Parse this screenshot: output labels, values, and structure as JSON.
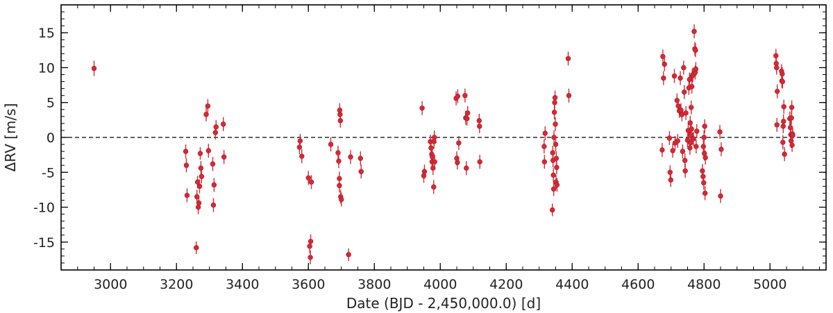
{
  "chart_data": {
    "type": "scatter",
    "xlabel": "Date (BJD - 2,450,000.0) [d]",
    "ylabel": "ΔRV [m/s]",
    "xlim": [
      2850,
      5170
    ],
    "ylim": [
      -19,
      19
    ],
    "x_ticks": [
      3000,
      3200,
      3400,
      3600,
      3800,
      4000,
      4200,
      4400,
      4600,
      4800,
      5000
    ],
    "y_ticks": [
      -15,
      -10,
      -5,
      0,
      5,
      10,
      15
    ],
    "x_tick_labels": [
      "3000",
      "3200",
      "3400",
      "3600",
      "3800",
      "4000",
      "4200",
      "4400",
      "4600",
      "4800",
      "5000"
    ],
    "y_tick_labels": [
      "-15",
      "-10",
      "-5",
      "0",
      "5",
      "10",
      "15"
    ],
    "x_minor_step": 50,
    "y_minor_step": 1,
    "reference_line": {
      "y": 0,
      "style": "dashed"
    },
    "grid": false,
    "marker_color": "#d42a35",
    "error_bar_color": "#d42a35",
    "series": [
      {
        "points": [
          {
            "x": 2950,
            "y": 9.9,
            "err": 1.1
          },
          {
            "x": 3228,
            "y": -2.0,
            "err": 1.0
          },
          {
            "x": 3230,
            "y": -4.0,
            "err": 1.0
          },
          {
            "x": 3232,
            "y": -8.3,
            "err": 1.0
          },
          {
            "x": 3260,
            "y": -15.8,
            "err": 0.9
          },
          {
            "x": 3262,
            "y": -8.5,
            "err": 1.0
          },
          {
            "x": 3264,
            "y": -6.4,
            "err": 0.9
          },
          {
            "x": 3266,
            "y": -10.0,
            "err": 1.0
          },
          {
            "x": 3268,
            "y": -9.4,
            "err": 1.0
          },
          {
            "x": 3270,
            "y": -7.0,
            "err": 1.0
          },
          {
            "x": 3272,
            "y": -2.3,
            "err": 0.9
          },
          {
            "x": 3274,
            "y": -4.4,
            "err": 1.0
          },
          {
            "x": 3276,
            "y": -5.6,
            "err": 1.0
          },
          {
            "x": 3290,
            "y": 3.3,
            "err": 1.0
          },
          {
            "x": 3295,
            "y": 4.5,
            "err": 1.0
          },
          {
            "x": 3297,
            "y": -1.9,
            "err": 1.0
          },
          {
            "x": 3310,
            "y": -3.8,
            "err": 1.0
          },
          {
            "x": 3312,
            "y": -9.7,
            "err": 1.0
          },
          {
            "x": 3314,
            "y": -6.8,
            "err": 1.0
          },
          {
            "x": 3318,
            "y": 0.7,
            "err": 1.0
          },
          {
            "x": 3320,
            "y": 1.5,
            "err": 1.0
          },
          {
            "x": 3342,
            "y": 1.9,
            "err": 1.0
          },
          {
            "x": 3344,
            "y": -2.8,
            "err": 1.0
          },
          {
            "x": 3573,
            "y": -1.4,
            "err": 1.0
          },
          {
            "x": 3575,
            "y": -0.5,
            "err": 1.0
          },
          {
            "x": 3580,
            "y": -2.7,
            "err": 1.0
          },
          {
            "x": 3600,
            "y": -5.8,
            "err": 1.0
          },
          {
            "x": 3604,
            "y": -15.6,
            "err": 1.0
          },
          {
            "x": 3606,
            "y": -17.2,
            "err": 1.0
          },
          {
            "x": 3607,
            "y": -14.9,
            "err": 1.0
          },
          {
            "x": 3609,
            "y": -6.4,
            "err": 1.0
          },
          {
            "x": 3668,
            "y": -1.0,
            "err": 1.0
          },
          {
            "x": 3690,
            "y": -2.2,
            "err": 1.0
          },
          {
            "x": 3692,
            "y": -3.4,
            "err": 1.0
          },
          {
            "x": 3694,
            "y": -5.9,
            "err": 1.0
          },
          {
            "x": 3694,
            "y": -6.9,
            "err": 1.0
          },
          {
            "x": 3695,
            "y": 3.9,
            "err": 1.0
          },
          {
            "x": 3696,
            "y": 3.3,
            "err": 1.0
          },
          {
            "x": 3697,
            "y": 2.4,
            "err": 1.0
          },
          {
            "x": 3698,
            "y": -8.5,
            "err": 1.0
          },
          {
            "x": 3700,
            "y": -8.9,
            "err": 1.0
          },
          {
            "x": 3722,
            "y": -16.8,
            "err": 0.9
          },
          {
            "x": 3728,
            "y": -2.8,
            "err": 1.0
          },
          {
            "x": 3758,
            "y": -3.0,
            "err": 1.0
          },
          {
            "x": 3760,
            "y": -4.9,
            "err": 1.0
          },
          {
            "x": 3945,
            "y": 4.2,
            "err": 1.0
          },
          {
            "x": 3950,
            "y": -5.5,
            "err": 1.0
          },
          {
            "x": 3952,
            "y": -4.9,
            "err": 1.0
          },
          {
            "x": 3970,
            "y": -0.6,
            "err": 1.0
          },
          {
            "x": 3972,
            "y": -1.5,
            "err": 1.0
          },
          {
            "x": 3974,
            "y": -2.4,
            "err": 1.0
          },
          {
            "x": 3975,
            "y": -3.5,
            "err": 1.0
          },
          {
            "x": 3976,
            "y": -2.8,
            "err": 1.0
          },
          {
            "x": 3978,
            "y": -4.4,
            "err": 1.0
          },
          {
            "x": 3980,
            "y": -7.1,
            "err": 1.0
          },
          {
            "x": 3981,
            "y": -0.6,
            "err": 1.0
          },
          {
            "x": 3982,
            "y": 0.0,
            "err": 1.0
          },
          {
            "x": 3983,
            "y": -3.5,
            "err": 1.0
          },
          {
            "x": 4048,
            "y": 5.6,
            "err": 1.0
          },
          {
            "x": 4050,
            "y": -3.0,
            "err": 1.0
          },
          {
            "x": 4052,
            "y": -3.6,
            "err": 1.0
          },
          {
            "x": 4053,
            "y": 5.9,
            "err": 1.0
          },
          {
            "x": 4056,
            "y": -0.8,
            "err": 1.0
          },
          {
            "x": 4075,
            "y": 6.0,
            "err": 1.0
          },
          {
            "x": 4077,
            "y": 2.8,
            "err": 1.0
          },
          {
            "x": 4079,
            "y": -4.4,
            "err": 1.0
          },
          {
            "x": 4081,
            "y": 2.7,
            "err": 1.0
          },
          {
            "x": 4083,
            "y": 3.5,
            "err": 1.0
          },
          {
            "x": 4118,
            "y": 2.4,
            "err": 1.0
          },
          {
            "x": 4119,
            "y": 1.6,
            "err": 1.0
          },
          {
            "x": 4120,
            "y": -3.5,
            "err": 1.0
          },
          {
            "x": 4315,
            "y": -1.3,
            "err": 1.0
          },
          {
            "x": 4316,
            "y": -3.5,
            "err": 1.0
          },
          {
            "x": 4318,
            "y": 0.6,
            "err": 1.0
          },
          {
            "x": 4340,
            "y": -10.4,
            "err": 0.9
          },
          {
            "x": 4341,
            "y": -2.2,
            "err": 1.0
          },
          {
            "x": 4342,
            "y": -3.3,
            "err": 1.0
          },
          {
            "x": 4343,
            "y": -5.4,
            "err": 1.0
          },
          {
            "x": 4344,
            "y": -7.4,
            "err": 1.0
          },
          {
            "x": 4345,
            "y": 0.0,
            "err": 1.0
          },
          {
            "x": 4346,
            "y": 3.6,
            "err": 1.0
          },
          {
            "x": 4347,
            "y": 5.0,
            "err": 1.0
          },
          {
            "x": 4348,
            "y": 5.7,
            "err": 1.0
          },
          {
            "x": 4349,
            "y": 1.9,
            "err": 1.0
          },
          {
            "x": 4350,
            "y": -1.0,
            "err": 1.0
          },
          {
            "x": 4351,
            "y": -6.4,
            "err": 1.0
          },
          {
            "x": 4352,
            "y": -3.0,
            "err": 1.0
          },
          {
            "x": 4353,
            "y": -4.3,
            "err": 1.0
          },
          {
            "x": 4354,
            "y": -6.8,
            "err": 1.0
          },
          {
            "x": 4388,
            "y": 11.3,
            "err": 1.0
          },
          {
            "x": 4390,
            "y": 6.0,
            "err": 1.0
          },
          {
            "x": 4673,
            "y": -1.8,
            "err": 1.0
          },
          {
            "x": 4675,
            "y": 11.6,
            "err": 1.0
          },
          {
            "x": 4677,
            "y": 8.5,
            "err": 1.0
          },
          {
            "x": 4680,
            "y": 10.5,
            "err": 1.0
          },
          {
            "x": 4695,
            "y": -0.1,
            "err": 1.0
          },
          {
            "x": 4697,
            "y": -5.0,
            "err": 1.0
          },
          {
            "x": 4699,
            "y": -6.1,
            "err": 1.0
          },
          {
            "x": 4705,
            "y": -1.9,
            "err": 1.0
          },
          {
            "x": 4710,
            "y": 8.8,
            "err": 1.0
          },
          {
            "x": 4712,
            "y": -0.8,
            "err": 1.0
          },
          {
            "x": 4718,
            "y": 5.3,
            "err": 1.0
          },
          {
            "x": 4720,
            "y": -0.5,
            "err": 1.0
          },
          {
            "x": 4722,
            "y": 4.5,
            "err": 1.0
          },
          {
            "x": 4725,
            "y": 3.8,
            "err": 1.0
          },
          {
            "x": 4728,
            "y": 8.5,
            "err": 1.0
          },
          {
            "x": 4730,
            "y": 3.9,
            "err": 1.0
          },
          {
            "x": 4733,
            "y": 3.3,
            "err": 1.0
          },
          {
            "x": 4735,
            "y": -2.0,
            "err": 1.0
          },
          {
            "x": 4738,
            "y": 10.0,
            "err": 1.0
          },
          {
            "x": 4740,
            "y": 6.5,
            "err": 1.0
          },
          {
            "x": 4742,
            "y": -3.3,
            "err": 1.0
          },
          {
            "x": 4743,
            "y": -4.8,
            "err": 1.0
          },
          {
            "x": 4745,
            "y": 3.5,
            "err": 1.0
          },
          {
            "x": 4750,
            "y": -0.4,
            "err": 1.0
          },
          {
            "x": 4752,
            "y": 1.0,
            "err": 1.0
          },
          {
            "x": 4754,
            "y": 7.1,
            "err": 1.0
          },
          {
            "x": 4756,
            "y": 8.3,
            "err": 1.0
          },
          {
            "x": 4757,
            "y": -1.5,
            "err": 1.0
          },
          {
            "x": 4758,
            "y": 2.1,
            "err": 1.0
          },
          {
            "x": 4759,
            "y": -0.8,
            "err": 1.0
          },
          {
            "x": 4760,
            "y": 0.4,
            "err": 1.0
          },
          {
            "x": 4761,
            "y": 4.3,
            "err": 1.0
          },
          {
            "x": 4762,
            "y": 1.2,
            "err": 1.0
          },
          {
            "x": 4763,
            "y": 7.3,
            "err": 1.0
          },
          {
            "x": 4764,
            "y": 8.8,
            "err": 1.0
          },
          {
            "x": 4766,
            "y": 9.0,
            "err": 1.0
          },
          {
            "x": 4768,
            "y": -0.2,
            "err": 1.0
          },
          {
            "x": 4770,
            "y": 15.2,
            "err": 1.0
          },
          {
            "x": 4772,
            "y": 12.7,
            "err": 1.0
          },
          {
            "x": 4773,
            "y": 9.3,
            "err": 1.0
          },
          {
            "x": 4774,
            "y": 12.5,
            "err": 1.0
          },
          {
            "x": 4775,
            "y": 9.8,
            "err": 1.0
          },
          {
            "x": 4776,
            "y": -1.3,
            "err": 1.0
          },
          {
            "x": 4778,
            "y": 0.9,
            "err": 1.0
          },
          {
            "x": 4795,
            "y": -4.8,
            "err": 1.0
          },
          {
            "x": 4797,
            "y": -5.6,
            "err": 1.0
          },
          {
            "x": 4798,
            "y": -1.3,
            "err": 1.0
          },
          {
            "x": 4799,
            "y": -6.5,
            "err": 1.0
          },
          {
            "x": 4800,
            "y": 0.0,
            "err": 1.0
          },
          {
            "x": 4801,
            "y": -2.3,
            "err": 1.0
          },
          {
            "x": 4802,
            "y": 1.6,
            "err": 1.0
          },
          {
            "x": 4803,
            "y": -8.0,
            "err": 1.0
          },
          {
            "x": 4804,
            "y": -2.9,
            "err": 1.0
          },
          {
            "x": 4848,
            "y": 0.8,
            "err": 1.0
          },
          {
            "x": 4850,
            "y": -8.4,
            "err": 1.0
          },
          {
            "x": 4852,
            "y": -1.7,
            "err": 1.0
          },
          {
            "x": 5018,
            "y": 11.7,
            "err": 1.0
          },
          {
            "x": 5019,
            "y": 10.6,
            "err": 1.0
          },
          {
            "x": 5020,
            "y": 10.0,
            "err": 1.0
          },
          {
            "x": 5021,
            "y": 1.8,
            "err": 1.0
          },
          {
            "x": 5022,
            "y": 6.6,
            "err": 1.0
          },
          {
            "x": 5035,
            "y": 9.5,
            "err": 1.0
          },
          {
            "x": 5036,
            "y": 8.1,
            "err": 1.0
          },
          {
            "x": 5037,
            "y": 9.1,
            "err": 1.0
          },
          {
            "x": 5038,
            "y": 8.0,
            "err": 1.0
          },
          {
            "x": 5039,
            "y": -0.7,
            "err": 1.0
          },
          {
            "x": 5040,
            "y": 1.6,
            "err": 1.0
          },
          {
            "x": 5041,
            "y": 2.3,
            "err": 1.0
          },
          {
            "x": 5042,
            "y": 4.4,
            "err": 1.0
          },
          {
            "x": 5044,
            "y": -2.4,
            "err": 1.0
          },
          {
            "x": 5060,
            "y": 2.7,
            "err": 1.0
          },
          {
            "x": 5062,
            "y": 1.4,
            "err": 1.0
          },
          {
            "x": 5063,
            "y": 0.4,
            "err": 1.0
          },
          {
            "x": 5064,
            "y": -0.5,
            "err": 1.0
          },
          {
            "x": 5065,
            "y": 2.8,
            "err": 1.0
          },
          {
            "x": 5066,
            "y": 4.3,
            "err": 1.0
          },
          {
            "x": 5067,
            "y": -1.1,
            "err": 1.0
          },
          {
            "x": 5068,
            "y": 0.5,
            "err": 1.0
          },
          {
            "x": 5069,
            "y": 0.3,
            "err": 1.0
          }
        ]
      }
    ]
  }
}
